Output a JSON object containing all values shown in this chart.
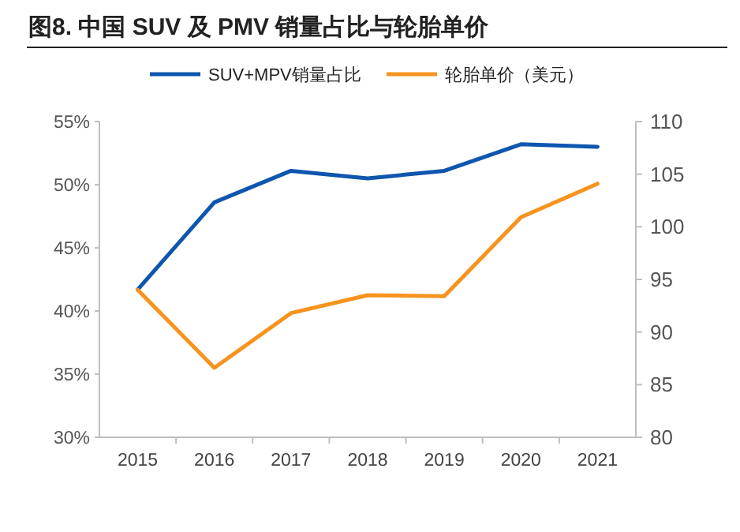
{
  "chart_data": {
    "type": "line",
    "title": "图8. 中国 SUV 及 PMV 销量占比与轮胎单价",
    "categories": [
      "2015",
      "2016",
      "2017",
      "2018",
      "2019",
      "2020",
      "2021"
    ],
    "series": [
      {
        "name": "SUV+MPV销量占比",
        "color": "#0e56ae",
        "values": [
          41.7,
          48.6,
          51.1,
          50.5,
          51.1,
          53.2,
          53.0
        ]
      },
      {
        "name": "轮胎单价（美元）",
        "color": "#f7931e",
        "axis": "y2",
        "values": [
          94.0,
          86.6,
          91.8,
          93.5,
          93.4,
          100.9,
          104.1
        ]
      }
    ],
    "ylim": [
      30,
      55
    ],
    "yticks": [
      {
        "value": 30,
        "label": "30%"
      },
      {
        "value": 35,
        "label": "35%"
      },
      {
        "value": 40,
        "label": "40%"
      },
      {
        "value": 45,
        "label": "45%"
      },
      {
        "value": 50,
        "label": "50%"
      },
      {
        "value": 55,
        "label": "55%"
      }
    ],
    "y2lim": [
      80,
      110
    ],
    "y2ticks": [
      80,
      85,
      90,
      95,
      100,
      105,
      110
    ],
    "legend": "top",
    "grid": false,
    "marker": "none",
    "line_style": "solid"
  }
}
